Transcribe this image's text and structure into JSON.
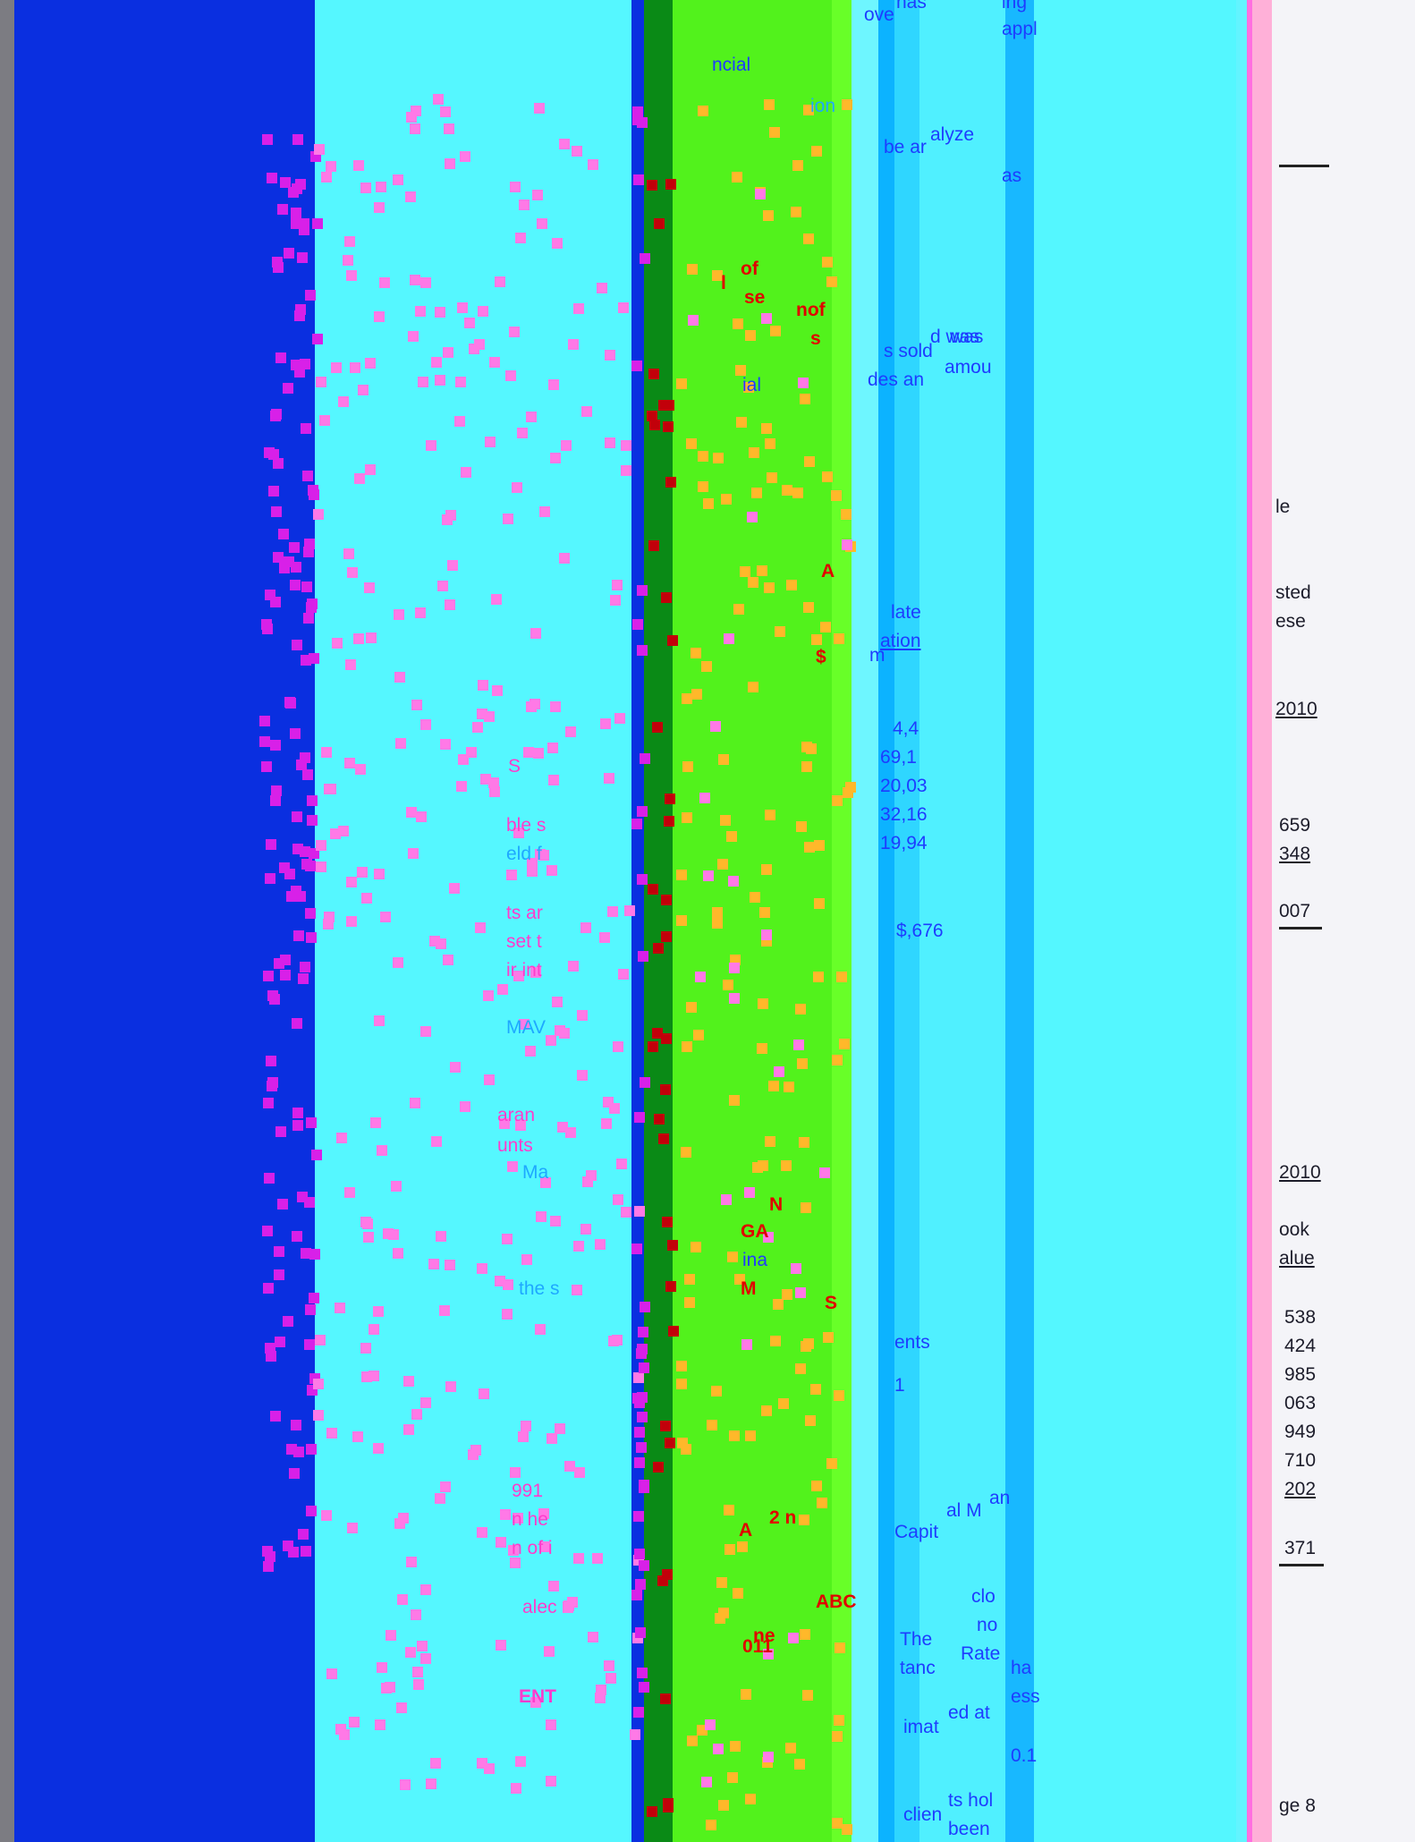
{
  "left_column_fragments": [
    "S",
    "ble s",
    "eld f",
    "ts ar",
    "set t",
    "ir int",
    "MAV",
    "aran",
    "unts",
    "Ma",
    "the s",
    "991",
    "n he",
    "n of i",
    "alec",
    "ENT"
  ],
  "middle_column_fragments": [
    "ncial",
    "ion",
    "of",
    "se",
    "l",
    "nof",
    "s",
    "ial",
    "A",
    "$",
    "N",
    "GA",
    "ina",
    "M",
    "S",
    "A",
    "ne",
    "ABC",
    "011",
    "2 n"
  ],
  "right_column_fragments": [
    "ove",
    "has",
    "ing",
    "appl",
    "alyze",
    "be ar",
    "as",
    "was",
    "d was",
    "s sold",
    "amou",
    "des an",
    "late",
    "ation",
    "m",
    "4,4",
    "69,1",
    "20,03",
    "32,16",
    "19,94",
    "$,676",
    "ents",
    "1",
    "Capit",
    "al M",
    "an",
    "clo",
    "no",
    "The",
    "Rate",
    "tanc",
    "ha",
    "ed at",
    "imat",
    "ess",
    "0.1",
    "ts hol",
    "been",
    "clien"
  ],
  "far_right_fragments": [
    "le",
    "sted",
    "ese",
    "2010",
    "659",
    "348",
    "007",
    "2010",
    "ook",
    "alue",
    "538",
    "424",
    "985",
    "063",
    "949",
    "710",
    "202",
    "371"
  ],
  "page_footer": "ge 8",
  "colors": {
    "blue_band": "#0a2fe0",
    "cyan_band": "#55f7ff",
    "green_band": "#52f21c",
    "pink_pixel": "#ff79e6",
    "magenta_pixel": "#d820e8",
    "red_text": "#e00000"
  }
}
